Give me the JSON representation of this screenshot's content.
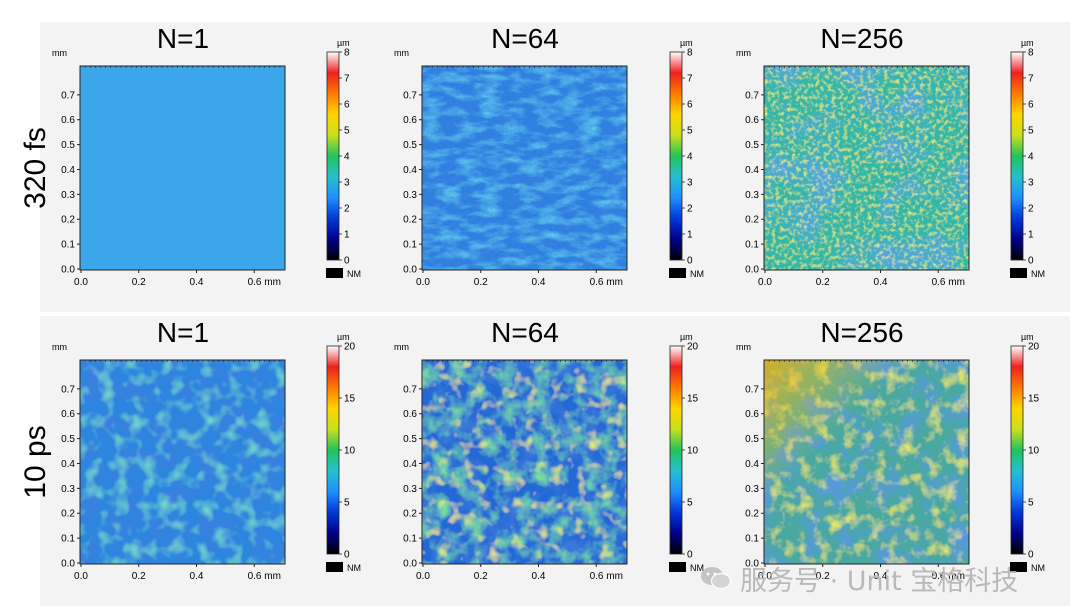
{
  "rows": [
    {
      "label": "320 fs",
      "scale": {
        "unit": "µm",
        "ticks": [
          "0",
          "1",
          "2",
          "3",
          "4",
          "5",
          "6",
          "7",
          "8"
        ]
      }
    },
    {
      "label": "10 ps",
      "scale": {
        "unit": "µm",
        "ticks": [
          "0",
          "5",
          "10",
          "15",
          "20"
        ]
      }
    }
  ],
  "columns": [
    "N=1",
    "N=64",
    "N=256"
  ],
  "axes": {
    "y_unit": "mm",
    "y_ticks": [
      "0.0",
      "0.1",
      "0.2",
      "0.3",
      "0.4",
      "0.5",
      "0.6",
      "0.7"
    ],
    "x_ticks": [
      "0.0",
      "0.2",
      "0.4",
      "0.6 mm"
    ]
  },
  "nm_label": "NM",
  "watermark": {
    "text": "服务号 · Unit 宝格科技",
    "icon": "wechat-icon"
  },
  "colors": {
    "colormap": [
      "#000000",
      "#00008b",
      "#0038d8",
      "#1e90ff",
      "#24c0cf",
      "#22c35a",
      "#c8e01c",
      "#ffd400",
      "#ff7a00",
      "#ee2020",
      "#ffffff"
    ]
  }
}
